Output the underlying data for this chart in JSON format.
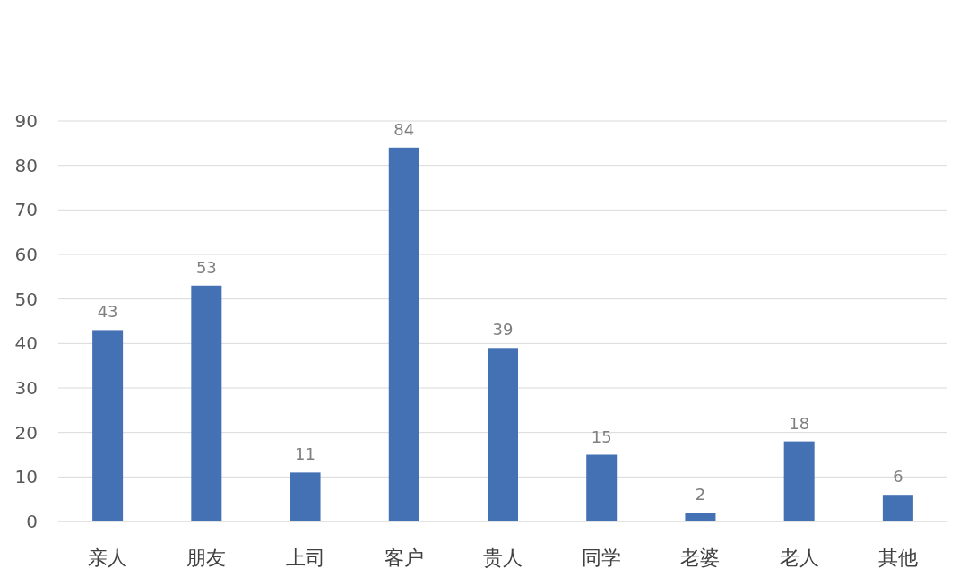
{
  "chart_data": {
    "type": "bar",
    "categories": [
      "亲人",
      "朋友",
      "上司",
      "客户",
      "贵人",
      "同学",
      "老婆",
      "老人",
      "其他"
    ],
    "values": [
      43,
      53,
      11,
      84,
      39,
      15,
      2,
      18,
      6
    ],
    "color": "#4470b4",
    "ylim": [
      0,
      90
    ],
    "yticks": [
      0,
      10,
      20,
      30,
      40,
      50,
      60,
      70,
      80,
      90
    ],
    "grid": "y",
    "data_labels": true
  }
}
